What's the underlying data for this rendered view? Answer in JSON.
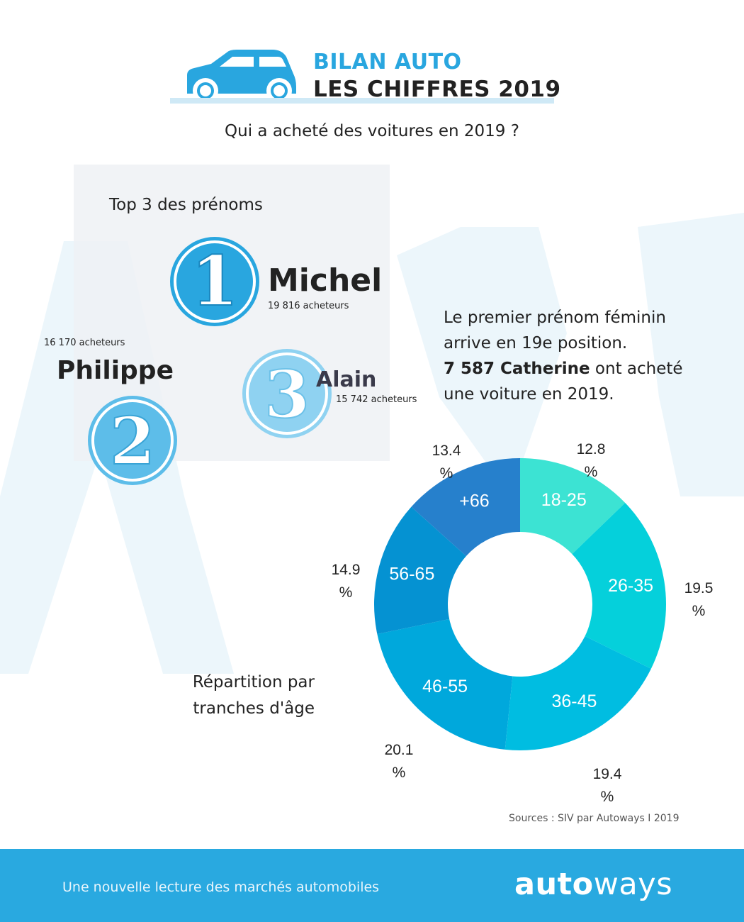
{
  "header": {
    "title_line1": "BILAN AUTO",
    "title_line2": "LES CHIFFRES 2019",
    "question": "Qui a acheté des voitures en 2019 ?"
  },
  "top_names": {
    "heading": "Top 3 des prénoms",
    "first": {
      "rank": "1",
      "name": "Michel",
      "buyers": "19 816 acheteurs"
    },
    "second": {
      "rank": "2",
      "name": "Philippe",
      "buyers": "16 170 acheteurs"
    },
    "third": {
      "rank": "3",
      "name": "Alain",
      "buyers": "15 742 acheteurs"
    }
  },
  "info": {
    "line1": "Le premier prénom féminin",
    "line2": "arrive en 19e position.",
    "line3_bold": "7 587 Catherine",
    "line3_rest": " ont acheté",
    "line4": "une voiture en 2019."
  },
  "age_section": {
    "label_line1": "Répartition par",
    "label_line2": "tranches d'âge"
  },
  "chart_data": {
    "type": "pie",
    "donut": true,
    "categories": [
      "18-25",
      "26-35",
      "36-45",
      "46-55",
      "56-65",
      "+66"
    ],
    "values": [
      12.8,
      19.5,
      19.4,
      20.1,
      14.9,
      13.4
    ],
    "value_labels": [
      [
        "12.8",
        "%"
      ],
      [
        "19.5",
        "%"
      ],
      [
        "19.4",
        "%"
      ],
      [
        "20.1",
        "%"
      ],
      [
        "14.9",
        "%"
      ],
      [
        "13.4",
        "%"
      ]
    ],
    "colors": [
      "#3ce3d3",
      "#05d0db",
      "#00bde1",
      "#00a8dc",
      "#0592d2",
      "#2680cc"
    ]
  },
  "sources": "Sources : SIV par Autoways  I  2019",
  "footer": {
    "tagline": "Une nouvelle lecture des marchés automobiles",
    "logo_bold": "auto",
    "logo_light": "ways"
  },
  "colors": {
    "accent": "#29a6df",
    "footer_bg": "#29a9e0",
    "panel_bg": "#eef1f4"
  }
}
